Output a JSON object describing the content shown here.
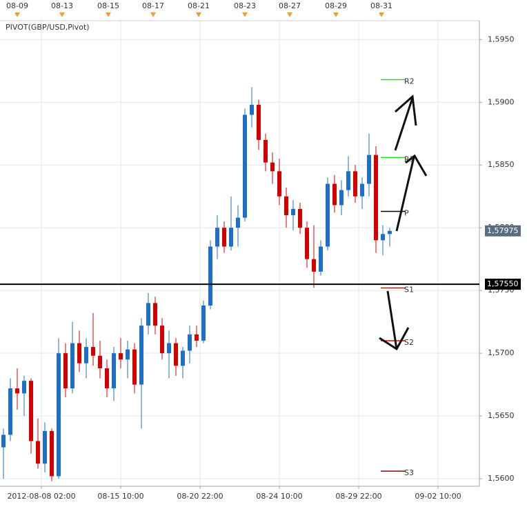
{
  "chart_data": {
    "type": "candlestick",
    "indicator": "PIVOT(GBP/USD,Pivot)",
    "up_color": "#1e6fc8",
    "down_color": "#d40000",
    "open": [
      1.5625,
      1.5635,
      1.5672,
      1.5668,
      1.5678,
      1.563,
      1.5612,
      1.5638,
      1.5602,
      1.57,
      1.5672,
      1.5708,
      1.5692,
      1.5705,
      1.5698,
      1.5688,
      1.5672,
      1.57,
      1.5695,
      1.5703,
      1.5675,
      1.5722,
      1.574,
      1.5722,
      1.57,
      1.5708,
      1.569,
      1.5702,
      1.5715,
      1.571,
      1.5738,
      1.5785,
      1.58,
      1.5785,
      1.58,
      1.5808,
      1.589,
      1.5898,
      1.587,
      1.5852,
      1.5845,
      1.5825,
      1.581,
      1.5815,
      1.58,
      1.5775,
      1.5765,
      1.5785,
      1.5835,
      1.5818,
      1.583,
      1.5845,
      1.5825,
      1.5835,
      1.5858,
      1.579,
      1.5795
    ],
    "high": [
      1.564,
      1.568,
      1.5688,
      1.5682,
      1.568,
      1.5648,
      1.5645,
      1.564,
      1.5712,
      1.5708,
      1.5725,
      1.5718,
      1.5712,
      1.5732,
      1.571,
      1.5695,
      1.5705,
      1.5712,
      1.571,
      1.5708,
      1.5728,
      1.5748,
      1.5745,
      1.5728,
      1.5718,
      1.5712,
      1.5705,
      1.5722,
      1.5722,
      1.5742,
      1.579,
      1.581,
      1.5805,
      1.5825,
      1.5818,
      1.5895,
      1.5912,
      1.5902,
      1.5875,
      1.586,
      1.5855,
      1.5832,
      1.5822,
      1.582,
      1.5805,
      1.5802,
      1.579,
      1.584,
      1.5842,
      1.5838,
      1.5857,
      1.585,
      1.584,
      1.5875,
      1.5865,
      1.5802,
      1.58
    ],
    "low": [
      1.56,
      1.563,
      1.5655,
      1.565,
      1.562,
      1.5608,
      1.5605,
      1.5598,
      1.56,
      1.5665,
      1.5668,
      1.5685,
      1.568,
      1.569,
      1.568,
      1.5665,
      1.5662,
      1.5688,
      1.568,
      1.5668,
      1.564,
      1.5715,
      1.5715,
      1.5695,
      1.568,
      1.5682,
      1.568,
      1.5692,
      1.5705,
      1.5708,
      1.5735,
      1.5775,
      1.578,
      1.5782,
      1.5785,
      1.5805,
      1.588,
      1.5862,
      1.5845,
      1.5835,
      1.5818,
      1.58,
      1.5798,
      1.5795,
      1.5768,
      1.5752,
      1.5762,
      1.5782,
      1.5812,
      1.581,
      1.5825,
      1.582,
      1.5815,
      1.5825,
      1.578,
      1.5778,
      1.5785
    ],
    "close": [
      1.5635,
      1.5672,
      1.5668,
      1.5678,
      1.563,
      1.5612,
      1.5638,
      1.5602,
      1.57,
      1.5672,
      1.5708,
      1.5692,
      1.5705,
      1.5698,
      1.5688,
      1.5672,
      1.57,
      1.5695,
      1.5703,
      1.5675,
      1.5722,
      1.574,
      1.5722,
      1.57,
      1.5708,
      1.569,
      1.5702,
      1.5715,
      1.571,
      1.5738,
      1.5785,
      1.58,
      1.5785,
      1.58,
      1.5808,
      1.589,
      1.5898,
      1.587,
      1.5852,
      1.5845,
      1.5825,
      1.581,
      1.5815,
      1.58,
      1.5775,
      1.5765,
      1.5785,
      1.5835,
      1.5818,
      1.583,
      1.5845,
      1.5825,
      1.5835,
      1.5858,
      1.579,
      1.5795,
      1.57975
    ],
    "xlim": [
      -0.5,
      69
    ],
    "ylim": [
      1.5594,
      1.5965
    ],
    "yticks": [
      {
        "value": 1.595,
        "label": "1,5950"
      },
      {
        "value": 1.59,
        "label": "1,5900"
      },
      {
        "value": 1.585,
        "label": "1,5850"
      },
      {
        "value": 1.58,
        "label": "1,5800"
      },
      {
        "value": 1.575,
        "label": "1,5750"
      },
      {
        "value": 1.57,
        "label": "1,5700"
      },
      {
        "value": 1.565,
        "label": "1,5650"
      },
      {
        "value": 1.56,
        "label": "1,5600"
      }
    ],
    "xticks": [
      {
        "value": 5.5,
        "label": "2012-08-08 02:00"
      },
      {
        "value": 17,
        "label": "08-15 10:00"
      },
      {
        "value": 28.5,
        "label": "08-20 22:00"
      },
      {
        "value": 40,
        "label": "08-24 10:00"
      },
      {
        "value": 51.5,
        "label": "08-29 22:00"
      },
      {
        "value": 63,
        "label": "09-02 10:00"
      }
    ],
    "top_ticks": [
      {
        "value": 2,
        "label": "08-09"
      },
      {
        "value": 8.5,
        "label": "08-13"
      },
      {
        "value": 15.2,
        "label": "08-15"
      },
      {
        "value": 21.7,
        "label": "08-17"
      },
      {
        "value": 28.3,
        "label": "08-21"
      },
      {
        "value": 35,
        "label": "08-23"
      },
      {
        "value": 41.5,
        "label": "08-27"
      },
      {
        "value": 48.2,
        "label": "08-29"
      },
      {
        "value": 54.8,
        "label": "08-31"
      }
    ],
    "pivots": [
      {
        "name": "R2",
        "color": "#22dd22",
        "value": 1.5918
      },
      {
        "name": "R1",
        "color": "#22dd22",
        "value": 1.5856
      },
      {
        "name": "P",
        "color": "#000000",
        "value": 1.5813
      },
      {
        "name": "S1",
        "color": "#dd0000",
        "value": 1.5752
      },
      {
        "name": "S2",
        "color": "#dd0000",
        "value": 1.571
      },
      {
        "name": "S3",
        "color": "#990000",
        "value": 1.5606
      }
    ],
    "hline": {
      "value": 1.5755,
      "label": "1,57550",
      "color": "#000000"
    },
    "last_price": {
      "value": 1.57975,
      "label": "1,57975",
      "color": "#5a6d80"
    }
  }
}
